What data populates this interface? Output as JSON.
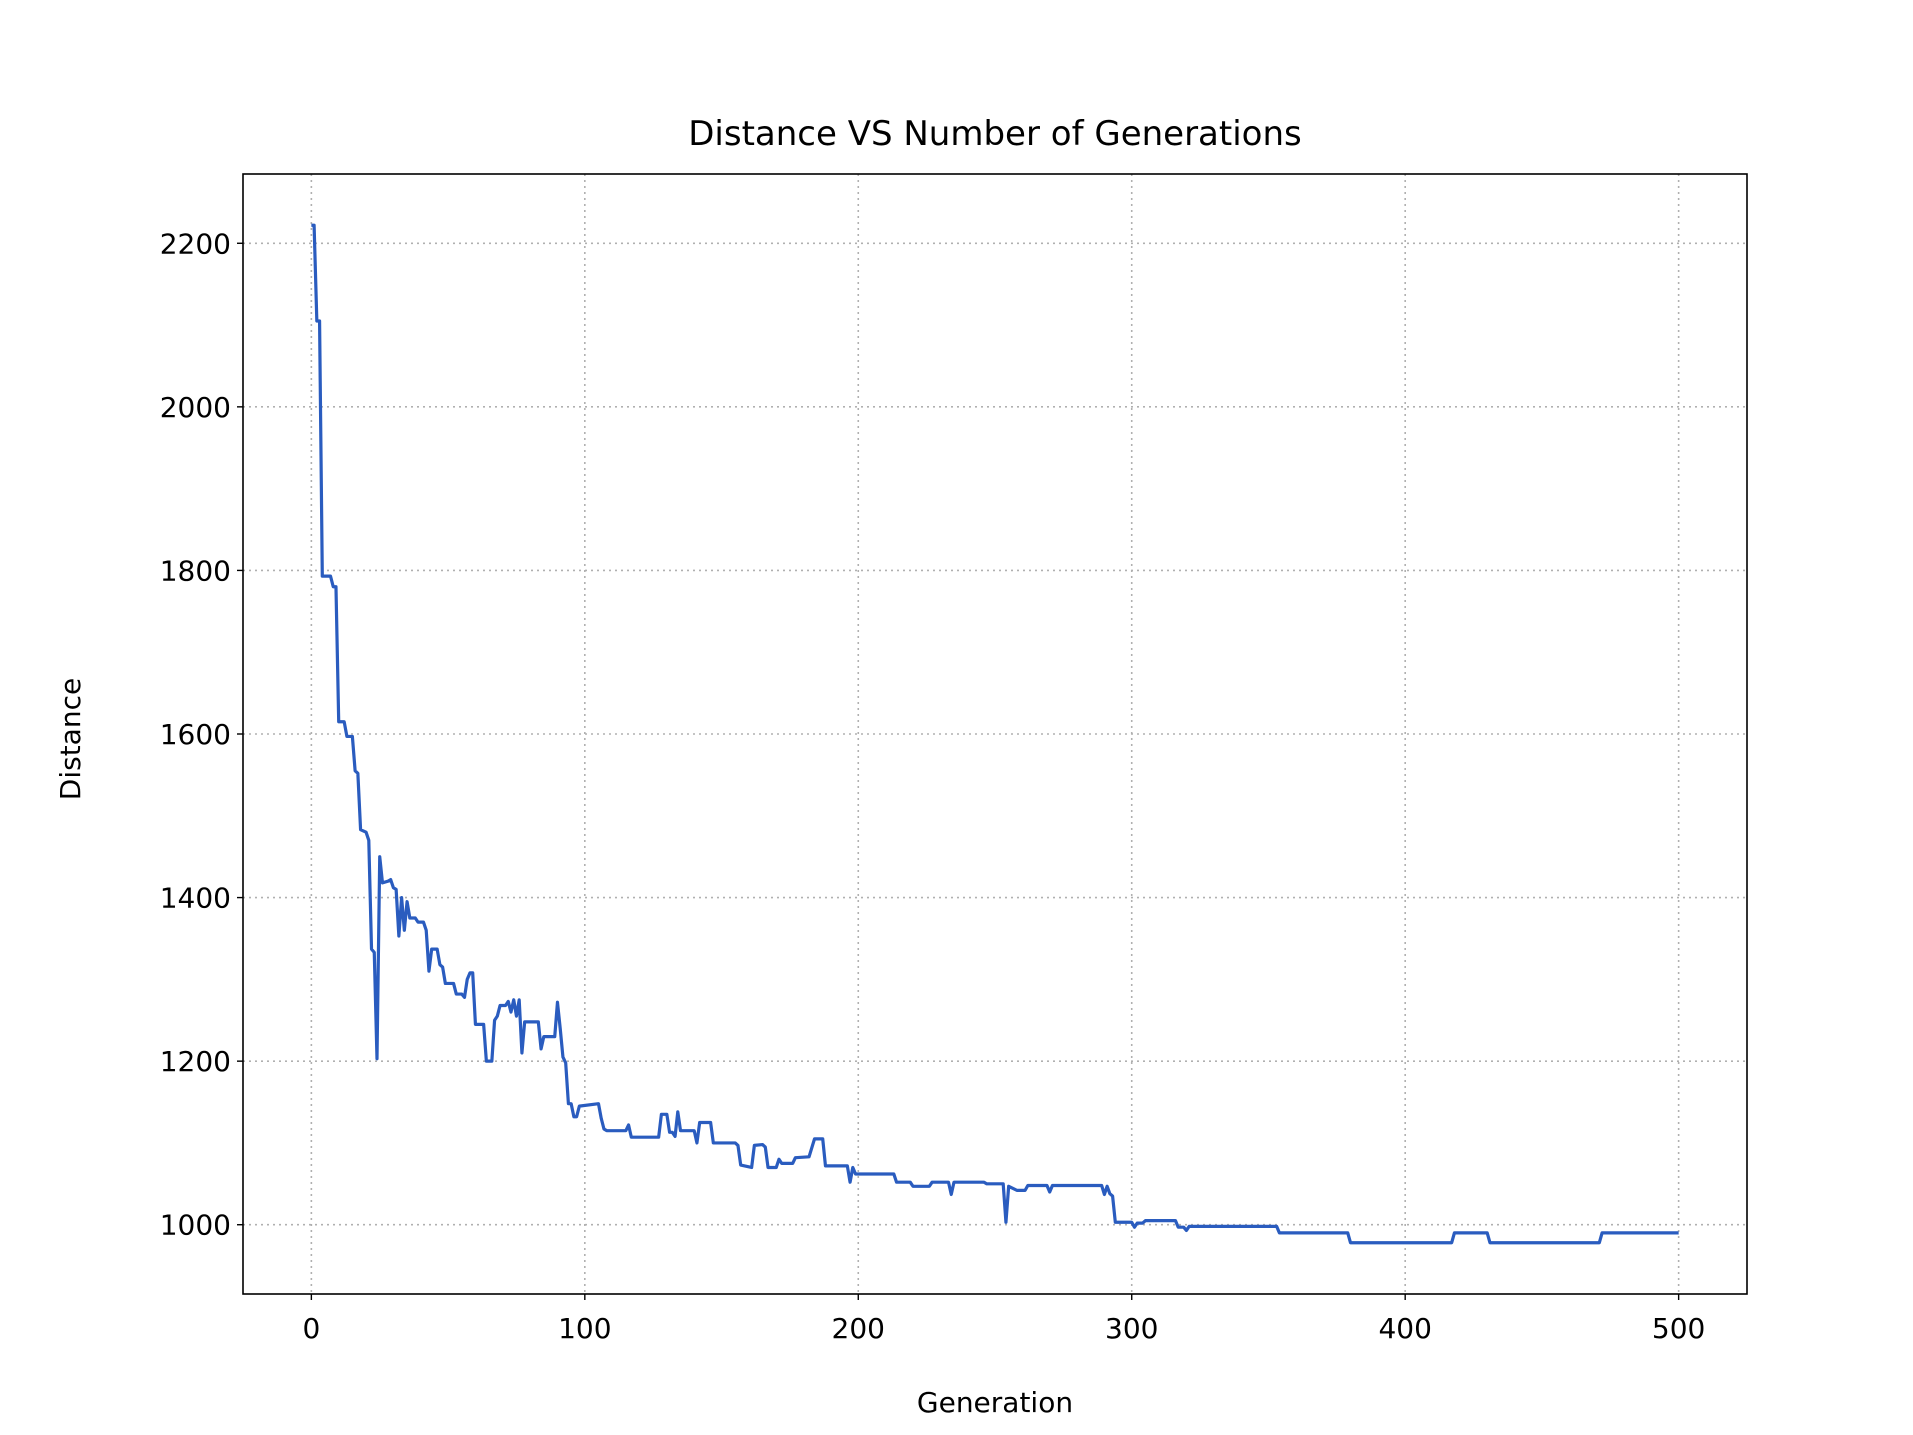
{
  "chart_data": {
    "type": "line",
    "title": "Distance VS Number of Generations",
    "xlabel": "Generation",
    "ylabel": "Distance",
    "color": "#2a5cbf",
    "grid": true,
    "xlim": [
      -25,
      525
    ],
    "ylim": [
      915.3,
      2284.7
    ],
    "xticks": [
      0,
      100,
      200,
      300,
      400,
      500
    ],
    "yticks": [
      1000,
      1200,
      1400,
      1600,
      1800,
      2000,
      2200
    ],
    "x": [
      0,
      1,
      2,
      3,
      4,
      7,
      8,
      9,
      10,
      12,
      13,
      15,
      16,
      17,
      18,
      20,
      21,
      22,
      23,
      24,
      25,
      26,
      28,
      29,
      30,
      31,
      32,
      33,
      34,
      35,
      36,
      38,
      39,
      41,
      42,
      43,
      44,
      46,
      47,
      48,
      49,
      52,
      53,
      55,
      56,
      57,
      58,
      59,
      60,
      63,
      64,
      66,
      67,
      68,
      69,
      71,
      72,
      73,
      74,
      75,
      76,
      77,
      78,
      83,
      84,
      85,
      89,
      90,
      91,
      92,
      93,
      94,
      95,
      96,
      97,
      98,
      105,
      106,
      107,
      108,
      115,
      116,
      117,
      127,
      128,
      130,
      131,
      132,
      133,
      134,
      135,
      140,
      141,
      142,
      146,
      147,
      155,
      156,
      157,
      161,
      162,
      165,
      166,
      167,
      170,
      171,
      172,
      176,
      177,
      182,
      184,
      187,
      188,
      196,
      197,
      198,
      199,
      213,
      214,
      219,
      220,
      226,
      227,
      233,
      234,
      235,
      246,
      247,
      253,
      254,
      255,
      258,
      261,
      262,
      269,
      270,
      271,
      289,
      290,
      291,
      292,
      293,
      294,
      300,
      301,
      302,
      304,
      305,
      316,
      317,
      319,
      320,
      321,
      353,
      354,
      379,
      380,
      417,
      418,
      430,
      431,
      471,
      472,
      500
    ],
    "values": [
      2222,
      2222,
      2105,
      2105,
      1793,
      1793,
      1780,
      1780,
      1615,
      1615,
      1597,
      1597,
      1555,
      1552,
      1483,
      1480,
      1470,
      1337,
      1333,
      1203,
      1450,
      1418,
      1420,
      1422,
      1412,
      1410,
      1353,
      1400,
      1360,
      1395,
      1375,
      1375,
      1370,
      1370,
      1360,
      1310,
      1337,
      1337,
      1318,
      1315,
      1295,
      1295,
      1282,
      1282,
      1278,
      1300,
      1308,
      1308,
      1245,
      1245,
      1200,
      1200,
      1250,
      1255,
      1268,
      1268,
      1273,
      1260,
      1275,
      1255,
      1275,
      1210,
      1248,
      1248,
      1215,
      1230,
      1230,
      1272,
      1240,
      1205,
      1198,
      1148,
      1148,
      1132,
      1132,
      1145,
      1148,
      1130,
      1117,
      1115,
      1115,
      1122,
      1107,
      1107,
      1135,
      1135,
      1113,
      1113,
      1108,
      1138,
      1115,
      1115,
      1100,
      1125,
      1125,
      1100,
      1100,
      1097,
      1073,
      1070,
      1097,
      1098,
      1095,
      1070,
      1070,
      1080,
      1075,
      1075,
      1082,
      1083,
      1105,
      1105,
      1072,
      1072,
      1052,
      1070,
      1062,
      1062,
      1052,
      1052,
      1047,
      1047,
      1052,
      1052,
      1037,
      1052,
      1052,
      1050,
      1050,
      1003,
      1047,
      1042,
      1042,
      1048,
      1048,
      1040,
      1048,
      1048,
      1037,
      1047,
      1038,
      1035,
      1003,
      1003,
      997,
      1002,
      1002,
      1005,
      1005,
      997,
      997,
      993,
      998,
      998,
      990,
      990,
      978,
      978,
      990,
      990,
      978,
      978,
      990,
      990
    ]
  }
}
